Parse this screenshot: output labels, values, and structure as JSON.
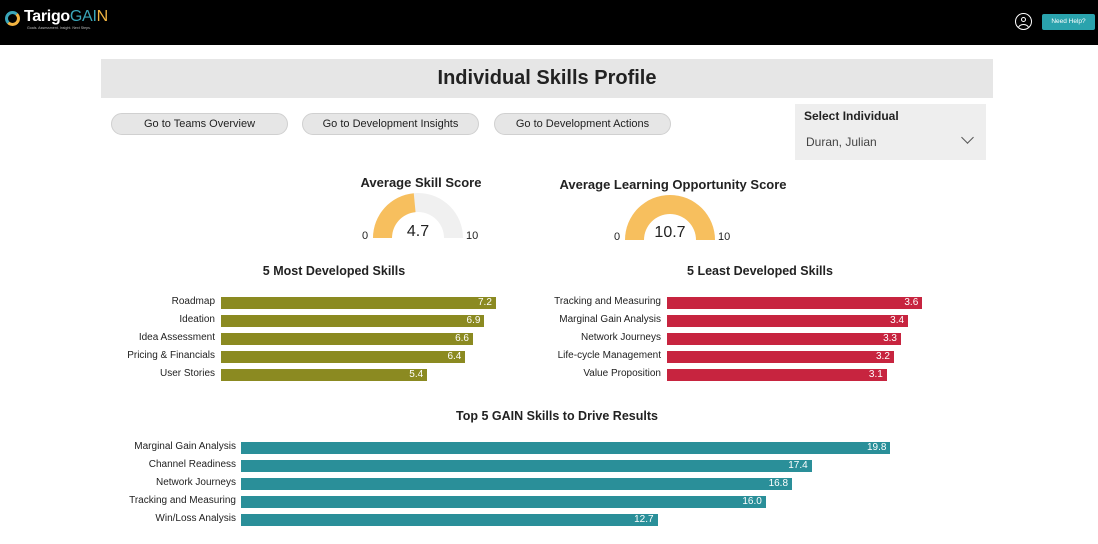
{
  "brand": {
    "name_prefix": "Tarigo",
    "name_ga": "GA",
    "name_i": "I",
    "name_n": "N",
    "tagline": "Goals. Assessment. Insight. Next Steps."
  },
  "header": {
    "help_label": "Need Help?",
    "title": "Individual Skills Profile"
  },
  "nav": {
    "teams_overview": "Go to Teams Overview",
    "development_insights": "Go to Development Insights",
    "development_actions": "Go to Development Actions"
  },
  "select": {
    "label": "Select Individual",
    "value": "Duran, Julian"
  },
  "gauges": [
    {
      "title": "Average Skill Score",
      "min": "0",
      "max": "10",
      "value_label": "4.7",
      "value": 4.7,
      "min_value": 0,
      "max_value": 10
    },
    {
      "title": "Average Learning Opportunity Score",
      "min": "0",
      "max": "10",
      "value_label": "10.7",
      "value": 10.7,
      "min_value": 0,
      "max_value": 10
    }
  ],
  "colors": {
    "gauge_fill": "#f7bf5e",
    "gauge_track": "#f0f0f0",
    "most_developed": "#8b8a21",
    "least_developed": "#c7243f",
    "gain_skills": "#2a8f99"
  },
  "chart_data": [
    {
      "type": "bar",
      "title": "5 Most Developed Skills",
      "categories": [
        "Roadmap",
        "Ideation",
        "Idea Assessment",
        "Pricing & Financials",
        "User Stories"
      ],
      "values": [
        7.2,
        6.9,
        6.6,
        6.4,
        5.4
      ],
      "value_labels": [
        "7.2",
        "6.9",
        "6.6",
        "6.4",
        "5.4"
      ],
      "xlim": [
        0,
        8.8
      ]
    },
    {
      "type": "bar",
      "title": "5 Least Developed Skills",
      "categories": [
        "Tracking and Measuring",
        "Marginal Gain Analysis",
        "Network Journeys",
        "Life-cycle Management",
        "Value Proposition"
      ],
      "values": [
        3.6,
        3.4,
        3.3,
        3.2,
        3.1
      ],
      "value_labels": [
        "3.6",
        "3.4",
        "3.3",
        "3.2",
        "3.1"
      ],
      "xlim": [
        0,
        4.4
      ]
    },
    {
      "type": "bar",
      "title": "Top 5 GAIN Skills to Drive Results",
      "categories": [
        "Marginal Gain Analysis",
        "Channel Readiness",
        "Network Journeys",
        "Tracking and Measuring",
        "Win/Loss Analysis"
      ],
      "values": [
        19.8,
        17.4,
        16.8,
        16.0,
        12.7
      ],
      "value_labels": [
        "19.8",
        "17.4",
        "16.8",
        "16.0",
        "12.7"
      ],
      "xlim": [
        0,
        25
      ]
    }
  ]
}
